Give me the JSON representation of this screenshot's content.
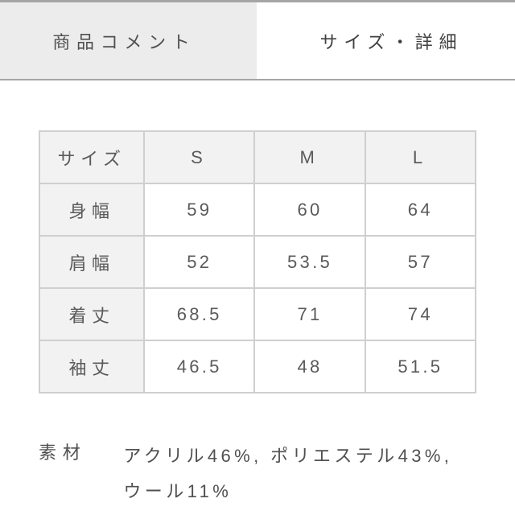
{
  "tabs": {
    "left_label": "商品コメント",
    "right_label": "サイズ・詳細"
  },
  "size_table": {
    "type": "table",
    "header_bg_color": "#f2f2f2",
    "border_color": "#cfcfcf",
    "text_color": "#5a5a5a",
    "font_size": 22,
    "columns": [
      "サイズ",
      "S",
      "M",
      "L"
    ],
    "row_labels": [
      "身幅",
      "肩幅",
      "着丈",
      "袖丈"
    ],
    "rows": [
      [
        "59",
        "60",
        "64"
      ],
      [
        "52",
        "53.5",
        "57"
      ],
      [
        "68.5",
        "71",
        "74"
      ],
      [
        "46.5",
        "48",
        "51.5"
      ]
    ]
  },
  "material": {
    "label": "素材",
    "line1": "アクリル46%, ポリエステル43%,",
    "line2": "ウール11%"
  },
  "colors": {
    "tab_active_bg": "#ececec",
    "tab_border": "#a5a5a5",
    "body_bg": "#ffffff"
  }
}
